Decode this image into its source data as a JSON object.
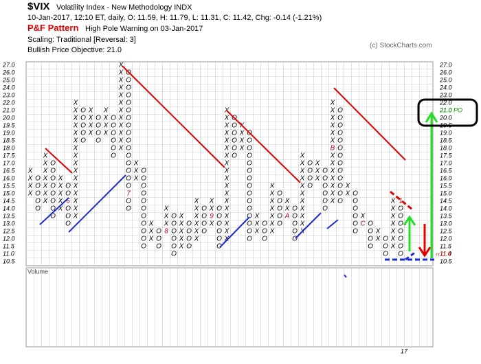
{
  "header": {
    "symbol": "$VIX",
    "name": "Volatility Index - New Methodology  INDX",
    "quote": "10-Jan-2017, 12:10 ET, daily, O: 11.59, H: 11.79, L: 11.31, C: 11.42, Chg: -0.14 (-1.21%)",
    "pattern_label": "P&F Pattern",
    "pattern": "High Pole Warning on 03-Jan-2017",
    "scaling": "Scaling: Traditional [Reversal: 3]",
    "objective": "Bullish Price Objective: 21.0",
    "copyright": "(c) StockCharts.com"
  },
  "chart_data": {
    "type": "pnf",
    "yticks": [
      {
        "value": 10.5,
        "label": "10.5"
      },
      {
        "value": 11,
        "label": "11.0"
      },
      {
        "value": 11.5,
        "label": "11.5"
      },
      {
        "value": 12,
        "label": "12.0"
      },
      {
        "value": 12.5,
        "label": "12.5"
      },
      {
        "value": 13,
        "label": "13.0"
      },
      {
        "value": 13.5,
        "label": "13.5"
      },
      {
        "value": 14,
        "label": "14.0"
      },
      {
        "value": 14.5,
        "label": "14.5"
      },
      {
        "value": 15,
        "label": "15.0"
      },
      {
        "value": 15.5,
        "label": "15.5"
      },
      {
        "value": 16,
        "label": "16.0"
      },
      {
        "value": 16.5,
        "label": "16.5"
      },
      {
        "value": 17,
        "label": "17.0"
      },
      {
        "value": 17.5,
        "label": "17.5"
      },
      {
        "value": 18,
        "label": "18.0"
      },
      {
        "value": 18.5,
        "label": "18.5"
      },
      {
        "value": 19,
        "label": "19.0"
      },
      {
        "value": 19.5,
        "label": "19.5"
      },
      {
        "value": 20,
        "label": "20.0"
      },
      {
        "value": 21,
        "label": "21.0"
      },
      {
        "value": 22,
        "label": "22.0"
      },
      {
        "value": 23,
        "label": "23.0"
      },
      {
        "value": 24,
        "label": "24.0"
      },
      {
        "value": 25,
        "label": "25.0"
      },
      {
        "value": 26,
        "label": "26.0"
      },
      {
        "value": 27,
        "label": "27.0"
      }
    ],
    "columns": [
      {
        "box": "X",
        "low": 15,
        "high": 16.5
      },
      {
        "box": "O",
        "low": 14,
        "high": 16
      },
      {
        "box": "X",
        "low": 14.5,
        "high": 17.5
      },
      {
        "box": "O",
        "low": 13.5,
        "high": 17
      },
      {
        "box": "X",
        "low": 14,
        "high": 16
      },
      {
        "box": "O",
        "low": 13,
        "high": 15.5
      },
      {
        "box": "X",
        "low": 13.5,
        "high": 22
      },
      {
        "box": "O",
        "low": 18.5,
        "high": 21
      },
      {
        "box": "X",
        "low": 19,
        "high": 21
      },
      {
        "box": "O",
        "low": 18.5,
        "high": 20
      },
      {
        "box": "X",
        "low": 19,
        "high": 21
      },
      {
        "box": "O",
        "low": 17.5,
        "high": 20
      },
      {
        "box": "X",
        "low": 18,
        "high": 27
      },
      {
        "box": "O",
        "low": 14,
        "high": 26
      },
      {
        "box": "X",
        "low": 16,
        "high": 17
      },
      {
        "box": "O",
        "low": 11.5,
        "high": 16.5
      },
      {
        "box": "X",
        "low": 12,
        "high": 13
      },
      {
        "box": "O",
        "low": 11.5,
        "high": 12.5
      },
      {
        "box": "X",
        "low": 12.5,
        "high": 14
      },
      {
        "box": "O",
        "low": 11,
        "high": 13.5
      },
      {
        "box": "X",
        "low": 11.5,
        "high": 13.5
      },
      {
        "box": "O",
        "low": 11.5,
        "high": 13
      },
      {
        "box": "X",
        "low": 12,
        "high": 14.5
      },
      {
        "box": "O",
        "low": 12.5,
        "high": 14
      },
      {
        "box": "X",
        "low": 13,
        "high": 14.5
      },
      {
        "box": "O",
        "low": 11.5,
        "high": 14
      },
      {
        "box": "X",
        "low": 12,
        "high": 21
      },
      {
        "box": "O",
        "low": 17.5,
        "high": 20
      },
      {
        "box": "X",
        "low": 18,
        "high": 19.5
      },
      {
        "box": "O",
        "low": 12,
        "high": 19
      },
      {
        "box": "X",
        "low": 12.5,
        "high": 13.5
      },
      {
        "box": "O",
        "low": 12,
        "high": 13
      },
      {
        "box": "X",
        "low": 12.5,
        "high": 15.5
      },
      {
        "box": "O",
        "low": 13,
        "high": 15
      },
      {
        "box": "X",
        "low": 13.5,
        "high": 14.5
      },
      {
        "box": "O",
        "low": 12,
        "high": 14
      },
      {
        "box": "X",
        "low": 12.5,
        "high": 17.5
      },
      {
        "box": "O",
        "low": 15.5,
        "high": 17
      },
      {
        "box": "X",
        "low": 16,
        "high": 17
      },
      {
        "box": "O",
        "low": 14,
        "high": 16.5
      },
      {
        "box": "X",
        "low": 14.5,
        "high": 22
      },
      {
        "box": "O",
        "low": 14.5,
        "high": 21
      },
      {
        "box": "X",
        "low": 15,
        "high": 15.5
      },
      {
        "box": "O",
        "low": 12.5,
        "high": 15
      },
      {
        "box": "X",
        "low": 13,
        "high": 13.5
      },
      {
        "box": "O",
        "low": 11.5,
        "high": 13
      },
      {
        "box": "X",
        "low": 12,
        "high": 12.5
      },
      {
        "box": "O",
        "low": 11,
        "high": 12
      },
      {
        "box": "X",
        "low": 11.5,
        "high": 14.5
      },
      {
        "box": "O",
        "low": 11,
        "high": 14.5
      }
    ],
    "month_markers": [
      {
        "column": 5,
        "price": 14.5,
        "label": "6"
      },
      {
        "column": 13,
        "price": 15,
        "label": "7"
      },
      {
        "column": 18,
        "price": 12.5,
        "label": "8"
      },
      {
        "column": 24,
        "price": 13.5,
        "label": "9"
      },
      {
        "column": 34,
        "price": 13.5,
        "label": "A"
      },
      {
        "column": 40,
        "price": 18,
        "label": "B"
      },
      {
        "column": 44,
        "price": 13,
        "label": "C"
      },
      {
        "column": 49,
        "price": 14.5,
        "label": "1"
      }
    ],
    "price_objective": {
      "price": 21,
      "label": "21.0 PO",
      "color": "#00a000"
    },
    "last_price": {
      "price": 11,
      "label": "‹‹11.4",
      "color": "#cc0000"
    },
    "volume_label": "Volume",
    "x_label": "17"
  }
}
